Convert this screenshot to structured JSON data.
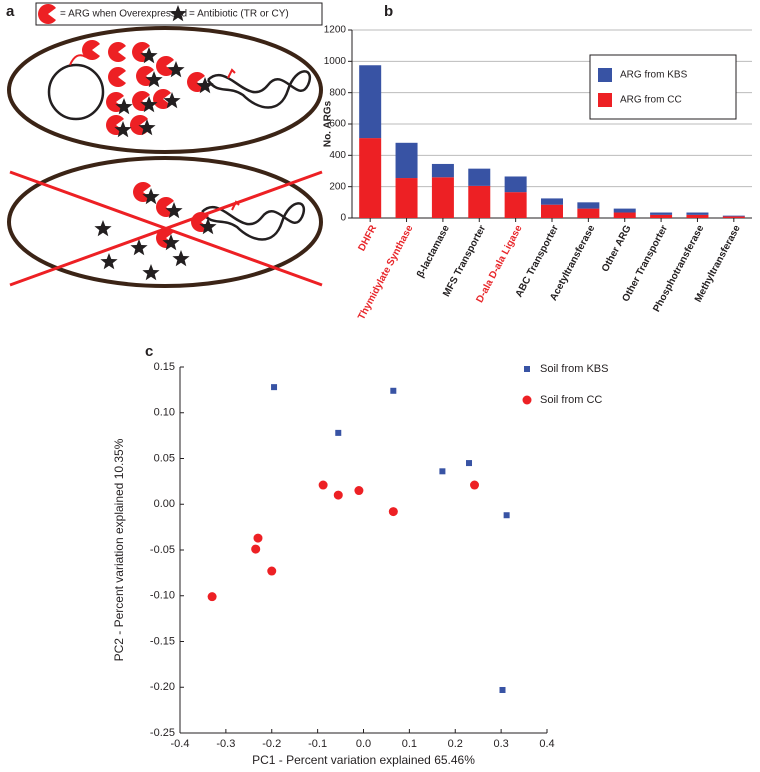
{
  "diagram": {
    "panel_label": "a",
    "legend": [
      "= ARG when Overexpressed",
      "= Antibiotic (TR or CY)"
    ]
  },
  "chart_data": [
    {
      "type": "stacked-bar",
      "panel_label": "b",
      "y_label": "No. ARGs",
      "categories": [
        "DHFR",
        "Thymidylate Synthase",
        "β-lactamase",
        "MFS Transporter",
        "D-ala D-ala Ligase",
        "ABC Transporter",
        "Acetyltransferase",
        "Other ARG",
        "Other Transporter",
        "Phosphotransferase",
        "Methyltransferase"
      ],
      "category_colors": [
        "#e8262a",
        "#e8262a",
        "#231f20",
        "#231f20",
        "#e8262a",
        "#231f20",
        "#231f20",
        "#231f20",
        "#231f20",
        "#231f20",
        "#231f20"
      ],
      "series": [
        {
          "name": "ARG from CC",
          "color": "#ed2024",
          "values": [
            510,
            255,
            260,
            205,
            165,
            85,
            60,
            35,
            20,
            20,
            10
          ]
        },
        {
          "name": "ARG from KBS",
          "color": "#3853a4",
          "values": [
            465,
            225,
            85,
            110,
            100,
            40,
            40,
            25,
            15,
            15,
            5
          ]
        }
      ],
      "ylim": [
        0,
        1200
      ],
      "yticks": [
        0,
        200,
        400,
        600,
        800,
        1000,
        1200
      ],
      "grid": true
    },
    {
      "type": "scatter",
      "panel_label": "c",
      "x_label": "PC1 - Percent variation explained 65.46%",
      "y_label": "PC2 - Percent variation explained 10.35%",
      "series": [
        {
          "name": "Soil from KBS",
          "color": "#3853a4",
          "marker": "square",
          "x": [
            -0.195,
            -0.055,
            0.065,
            0.172,
            0.23,
            0.312,
            0.303
          ],
          "y": [
            0.128,
            0.078,
            0.124,
            0.036,
            0.045,
            -0.012,
            -0.203
          ]
        },
        {
          "name": "Soil from CC",
          "color": "#ed2024",
          "marker": "circle",
          "x": [
            -0.088,
            -0.055,
            -0.01,
            0.065,
            0.242,
            -0.23,
            -0.235,
            -0.2,
            -0.33
          ],
          "y": [
            0.021,
            0.01,
            0.015,
            -0.008,
            0.021,
            -0.037,
            -0.049,
            -0.073,
            -0.101
          ]
        }
      ],
      "xlim": [
        -0.4,
        0.4
      ],
      "xticks": [
        -0.4,
        -0.3,
        -0.2,
        -0.1,
        {
          "value": 0,
          "label": "0.0"
        },
        0.1,
        0.2,
        0.3,
        0.4
      ],
      "ylim": [
        -0.25,
        0.15
      ],
      "yticks": [
        -0.25,
        {
          "value": -0.2,
          "label": "-0.20"
        },
        -0.15,
        {
          "value": -0.1,
          "label": "-0.10"
        },
        -0.05,
        {
          "value": 0,
          "label": "0.00"
        },
        0.05,
        {
          "value": 0.1,
          "label": "0.10"
        },
        0.15
      ]
    }
  ]
}
